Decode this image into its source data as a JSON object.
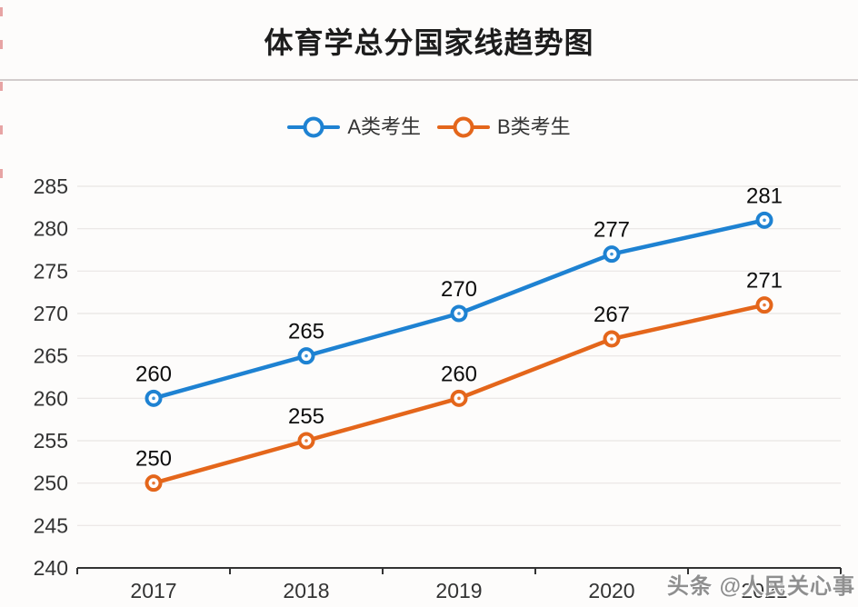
{
  "header": {
    "title": "体育学总分国家线趋势图"
  },
  "legend": [
    {
      "label": "A类考生",
      "color": "#1e82d2"
    },
    {
      "label": "B类考生",
      "color": "#e4661b"
    }
  ],
  "watermark": {
    "text": "头条 @人民关心事"
  },
  "colors": {
    "series_a_blue": "#1e82d2",
    "series_b_orange": "#e4661b",
    "axis": "#333333",
    "grid": "#e9e6e4",
    "divider": "#d2cccc",
    "background": "#fdfcfb",
    "edge_artifact_red": "#cc3a3a"
  },
  "chart_data": {
    "type": "line",
    "title": "体育学总分国家线趋势图",
    "categories": [
      "2017",
      "2018",
      "2019",
      "2020",
      "2021"
    ],
    "series": [
      {
        "name": "A类考生",
        "color": "#1e82d2",
        "values": [
          260,
          265,
          270,
          277,
          281
        ]
      },
      {
        "name": "B类考生",
        "color": "#e4661b",
        "values": [
          250,
          255,
          260,
          267,
          271
        ]
      }
    ],
    "ylim": [
      240,
      285
    ],
    "ytick_step": 5,
    "xlabel": "",
    "ylabel": "",
    "grid": true,
    "legend_position": "top",
    "data_labels": true
  }
}
